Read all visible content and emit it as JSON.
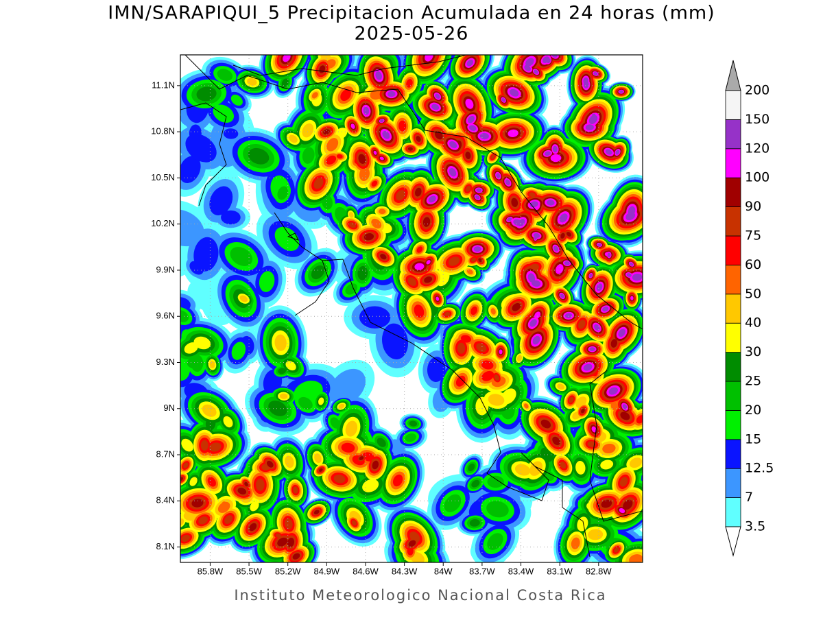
{
  "chart_data": {
    "type": "contour-map",
    "title": "IMN/SARAPIQUI_5 Precipitacion Acumulada en 24 horas (mm)",
    "subtitle": "2025-05-26",
    "footer": "Instituto Meteorologico Nacional Costa Rica",
    "xlim": [
      -86.03,
      -82.46
    ],
    "ylim": [
      8.0,
      11.3
    ],
    "xticks": [
      {
        "value": -85.8,
        "label": "85.8W"
      },
      {
        "value": -85.5,
        "label": "85.5W"
      },
      {
        "value": -85.2,
        "label": "85.2W"
      },
      {
        "value": -84.9,
        "label": "84.9W"
      },
      {
        "value": -84.6,
        "label": "84.6W"
      },
      {
        "value": -84.3,
        "label": "84.3W"
      },
      {
        "value": -84.0,
        "label": "84W"
      },
      {
        "value": -83.7,
        "label": "83.7W"
      },
      {
        "value": -83.4,
        "label": "83.4W"
      },
      {
        "value": -83.1,
        "label": "83.1W"
      },
      {
        "value": -82.8,
        "label": "82.8W"
      }
    ],
    "yticks": [
      {
        "value": 8.1,
        "label": "8.1N"
      },
      {
        "value": 8.4,
        "label": "8.4N"
      },
      {
        "value": 8.7,
        "label": "8.7N"
      },
      {
        "value": 9.0,
        "label": "9N"
      },
      {
        "value": 9.3,
        "label": "9.3N"
      },
      {
        "value": 9.6,
        "label": "9.6N"
      },
      {
        "value": 9.9,
        "label": "9.9N"
      },
      {
        "value": 10.2,
        "label": "10.2N"
      },
      {
        "value": 10.5,
        "label": "10.5N"
      },
      {
        "value": 10.8,
        "label": "10.8N"
      },
      {
        "value": 11.1,
        "label": "11.1N"
      }
    ],
    "grid": true,
    "colorbar": {
      "levels": [
        3.5,
        7,
        12.5,
        15,
        20,
        25,
        30,
        40,
        50,
        60,
        75,
        90,
        100,
        120,
        150,
        200
      ],
      "colors": [
        "#60ffff",
        "#3c96ff",
        "#0a14ff",
        "#00f000",
        "#00c000",
        "#008c00",
        "#ffff00",
        "#ffc800",
        "#ff6400",
        "#ff0000",
        "#c83200",
        "#a00000",
        "#ff00ff",
        "#9632c8",
        "#f5f5f5"
      ],
      "under_color": "#ffffff",
      "over_color": "#aaaaaa"
    }
  }
}
